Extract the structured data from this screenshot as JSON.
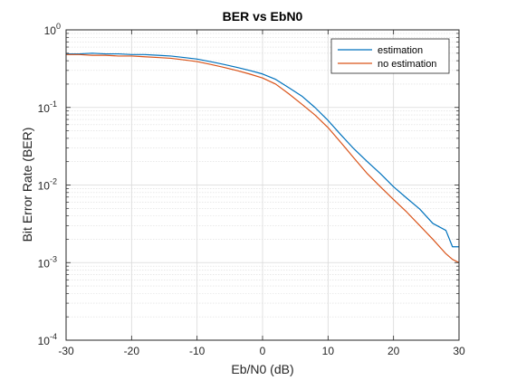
{
  "chart_data": {
    "type": "line",
    "title": "BER vs EbN0",
    "xlabel": "Eb/N0 (dB)",
    "ylabel": "Bit Error Rate (BER)",
    "xlim": [
      -30,
      30
    ],
    "ylim": [
      0.0001,
      1
    ],
    "yscale": "log",
    "grid": true,
    "minor_grid": true,
    "legend_position": "top-right",
    "x_ticks": [
      "-30",
      "-20",
      "-10",
      "0",
      "10",
      "20",
      "30"
    ],
    "y_ticks": [
      {
        "base": "10",
        "exp": "0"
      },
      {
        "base": "10",
        "exp": "-1"
      },
      {
        "base": "10",
        "exp": "-2"
      },
      {
        "base": "10",
        "exp": "-3"
      },
      {
        "base": "10",
        "exp": "-4"
      }
    ],
    "x": [
      -30,
      -28,
      -26,
      -24,
      -22,
      -20,
      -18,
      -16,
      -14,
      -12,
      -10,
      -8,
      -6,
      -4,
      -2,
      0,
      2,
      4,
      6,
      8,
      10,
      12,
      14,
      16,
      18,
      20,
      22,
      24,
      26,
      28,
      29,
      30
    ],
    "series": [
      {
        "name": "estimation",
        "color": "#0072BD",
        "values": [
          0.49,
          0.49,
          0.5,
          0.49,
          0.49,
          0.48,
          0.48,
          0.47,
          0.46,
          0.44,
          0.42,
          0.39,
          0.36,
          0.33,
          0.3,
          0.27,
          0.23,
          0.18,
          0.14,
          0.1,
          0.068,
          0.044,
          0.029,
          0.02,
          0.014,
          0.0095,
          0.0068,
          0.0049,
          0.0032,
          0.0026,
          0.0016,
          0.0016
        ]
      },
      {
        "name": "no estimation",
        "color": "#D95319",
        "values": [
          0.48,
          0.48,
          0.47,
          0.47,
          0.46,
          0.46,
          0.45,
          0.44,
          0.43,
          0.41,
          0.39,
          0.36,
          0.33,
          0.3,
          0.27,
          0.24,
          0.2,
          0.15,
          0.11,
          0.08,
          0.055,
          0.035,
          0.022,
          0.014,
          0.0095,
          0.0065,
          0.0045,
          0.003,
          0.002,
          0.0013,
          0.0011,
          0.001
        ]
      }
    ]
  }
}
